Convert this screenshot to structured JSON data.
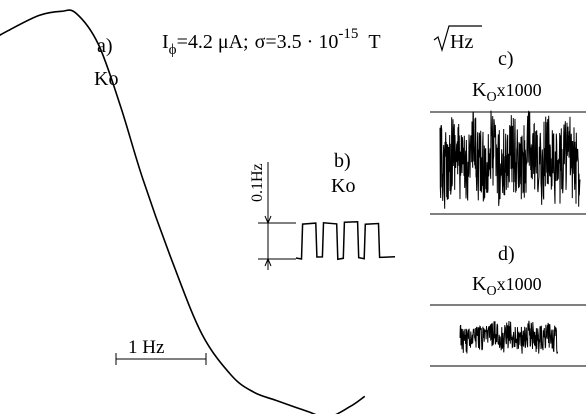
{
  "header": {
    "current_symbol": "I",
    "current_subscript": "ϕ",
    "current_value": "=4.2 μA;",
    "sigma_text": "σ=3.5 · 10",
    "sigma_exponent": "-15",
    "sigma_unit": "T",
    "sigma_unit_root": "Hz"
  },
  "panels": {
    "a": {
      "letter": "a)",
      "name": "Ko"
    },
    "b": {
      "letter": "b)",
      "name": "Ko"
    },
    "c": {
      "letter": "c)",
      "name_main": "K",
      "name_sub": "O",
      "factor": "x1000"
    },
    "d": {
      "letter": "d)",
      "name_main": "K",
      "name_sub": "O",
      "factor": "x1000"
    }
  },
  "scale_bars": {
    "frequency": "1 Hz",
    "vertical": "0.1Hz"
  },
  "chart_data": [
    {
      "type": "line",
      "panel": "a",
      "x": [
        -1.55,
        -1.3,
        -1.05,
        -0.8,
        -0.6,
        -0.45,
        -0.35,
        -0.2,
        -0.05,
        0.1,
        0.3,
        0.5,
        0.7,
        0.85,
        1.0,
        1.2,
        1.35,
        1.5,
        1.6
      ],
      "y": [
        0.55,
        0.65,
        0.77,
        0.87,
        0.94,
        0.96,
        0.95,
        0.8,
        0.5,
        0.15,
        -0.25,
        -0.6,
        -0.8,
        -0.88,
        -0.92,
        -0.97,
        -1.0,
        -0.95,
        -0.9
      ]
    },
    {
      "type": "line",
      "panel": "b",
      "x": [
        0,
        0.05,
        0.06,
        0.18,
        0.19,
        0.24,
        0.25,
        0.37,
        0.38,
        0.43,
        0.44,
        0.56,
        0.57,
        0.62,
        0.63,
        0.75,
        0.76,
        0.9
      ],
      "y": [
        0,
        0,
        1,
        1,
        0,
        0,
        1,
        1,
        0,
        0,
        1,
        1,
        0,
        0,
        1,
        1,
        0,
        0
      ]
    },
    {
      "type": "line",
      "panel": "c",
      "note": "noise trace",
      "amplitude": 1.0
    },
    {
      "type": "line",
      "panel": "d",
      "note": "noise trace",
      "amplitude": 0.35
    }
  ]
}
